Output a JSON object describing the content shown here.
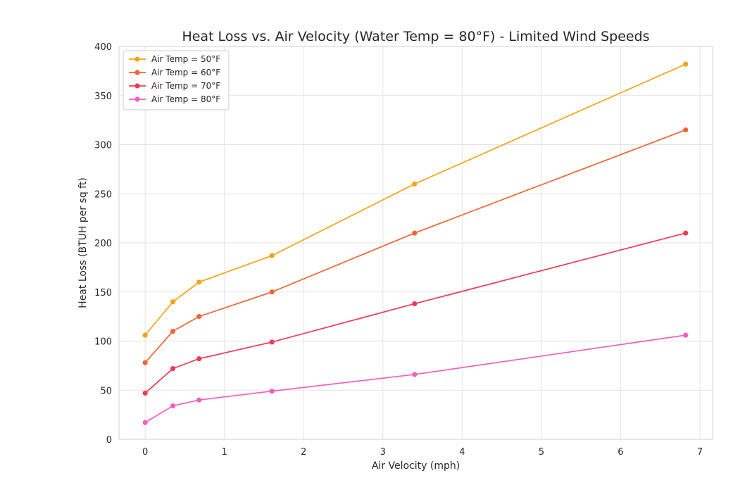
{
  "chart_data": {
    "type": "line",
    "title": "Heat Loss vs. Air Velocity (Water Temp = 80°F) - Limited Wind Speeds",
    "xlabel": "Air Velocity (mph)",
    "ylabel": "Heat Loss (BTUH per sq ft)",
    "xlim": [
      -0.33,
      7.16
    ],
    "ylim": [
      0,
      400
    ],
    "xticks": [
      0,
      1,
      2,
      3,
      4,
      5,
      6,
      7
    ],
    "yticks": [
      0,
      50,
      100,
      150,
      200,
      250,
      300,
      350,
      400
    ],
    "grid": true,
    "legend_position": "top-left",
    "x": [
      0,
      0.35,
      0.68,
      1.6,
      3.4,
      6.82
    ],
    "series": [
      {
        "name": "Air Temp = 50°F",
        "color": "#f5a30f",
        "values": [
          106,
          140,
          160,
          187,
          260,
          382
        ]
      },
      {
        "name": "Air Temp = 60°F",
        "color": "#f26430",
        "values": [
          78,
          110,
          125,
          150,
          210,
          315
        ]
      },
      {
        "name": "Air Temp = 70°F",
        "color": "#ef3a58",
        "values": [
          47,
          72,
          82,
          99,
          138,
          210
        ]
      },
      {
        "name": "Air Temp = 80°F",
        "color": "#f25fc3",
        "values": [
          17,
          34,
          40,
          49,
          66,
          106
        ]
      }
    ]
  }
}
